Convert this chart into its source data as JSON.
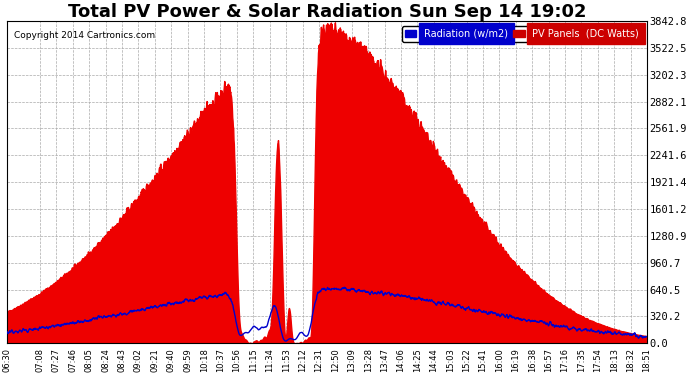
{
  "title": "Total PV Power & Solar Radiation Sun Sep 14 19:02",
  "copyright": "Copyright 2014 Cartronics.com",
  "yticks": [
    0.0,
    320.2,
    640.5,
    960.7,
    1280.9,
    1601.2,
    1921.4,
    2241.6,
    2561.9,
    2882.1,
    3202.3,
    3522.5,
    3842.8
  ],
  "ymax": 3842.8,
  "ymin": 0.0,
  "legend_labels": [
    "Radiation (w/m2)",
    "PV Panels  (DC Watts)"
  ],
  "legend_colors": [
    "#0000cc",
    "#cc0000"
  ],
  "bg_color": "#ffffff",
  "plot_bg_color": "#ffffff",
  "grid_color": "#aaaaaa",
  "pv_color": "#ee0000",
  "rad_color": "#0000cc",
  "title_fontsize": 13,
  "xtick_labels": [
    "06:30",
    "07:08",
    "07:27",
    "07:46",
    "08:05",
    "08:24",
    "08:43",
    "09:02",
    "09:21",
    "09:40",
    "09:59",
    "10:18",
    "10:37",
    "10:56",
    "11:15",
    "11:34",
    "11:53",
    "12:12",
    "12:31",
    "12:50",
    "13:09",
    "13:28",
    "13:47",
    "14:06",
    "14:25",
    "14:44",
    "15:03",
    "15:22",
    "15:41",
    "16:00",
    "16:19",
    "16:38",
    "16:57",
    "17:16",
    "17:35",
    "17:54",
    "18:13",
    "18:32",
    "18:51"
  ]
}
